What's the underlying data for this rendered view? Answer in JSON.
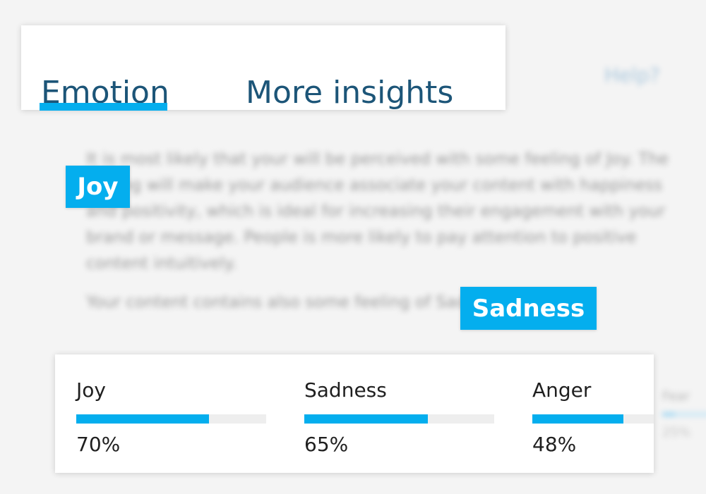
{
  "tabs": [
    {
      "label": "Emotion",
      "active": true
    },
    {
      "label": "More insights",
      "active": false
    }
  ],
  "help_label": "Help?",
  "body_text": {
    "paragraph1": "It is most likely that your will be perceived with some feeling of Joy. The feeling will make your audience associate your content with happiness and positivity, which is ideal for increasing their engagement with your brand or message. People is more likely to pay attention to positive content intuitively.",
    "paragraph2": "Your content contains also some feeling of Sadness"
  },
  "highlights": {
    "primary": "Joy",
    "secondary": "Sadness"
  },
  "emotions": [
    {
      "name": "Joy",
      "value": 70,
      "label": "70%"
    },
    {
      "name": "Sadness",
      "value": 65,
      "label": "65%"
    },
    {
      "name": "Anger",
      "value": 48,
      "label": "48%"
    },
    {
      "name": "Fear",
      "value": 25,
      "label": "25%"
    }
  ],
  "colors": {
    "accent": "#04aeee",
    "tab_text": "#1c5578",
    "track": "#eeeeee"
  }
}
